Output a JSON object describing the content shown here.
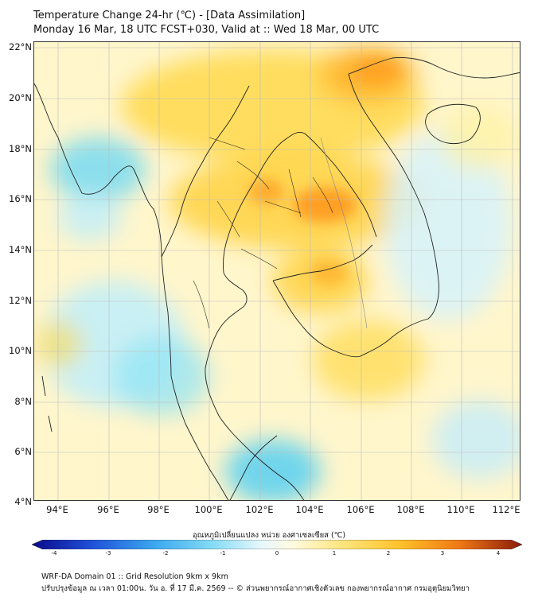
{
  "title_line1": "Temperature Change 24-hr (℃) - [Data Assimilation]",
  "title_line2": "Monday 16 Mar, 18 UTC FCST+030, Valid at :: Wed 18 Mar, 00 UTC",
  "lat_labels": [
    "22°N",
    "20°N",
    "18°N",
    "16°N",
    "14°N",
    "12°N",
    "10°N",
    "8°N",
    "6°N",
    "4°N"
  ],
  "lon_labels": [
    "94°E",
    "96°E",
    "98°E",
    "100°E",
    "102°E",
    "104°E",
    "106°E",
    "108°E",
    "110°E",
    "112°E"
  ],
  "colorbar": {
    "title": "อุณหภูมิเปลี่ยนแปลง หน่วย องศาเซลเซียส (℃)",
    "ticks": [
      "-4",
      "-3",
      "-2",
      "-1",
      "0",
      "1",
      "2",
      "3",
      "4"
    ],
    "min": -4,
    "max": 4
  },
  "footer_line1": "WRF-DA Domain 01 :: Grid Resolution 9km x 9km",
  "footer_line2": "ปรับปรุงข้อมูล ณ เวลา 01:00น. วัน อ. ที่ 17 มี.ค. 2569 -- © ส่วนพยากรณ์อากาศเชิงตัวเลข กองพยากรณ์อากาศ กรมอุตุนิยมวิทยา"
}
